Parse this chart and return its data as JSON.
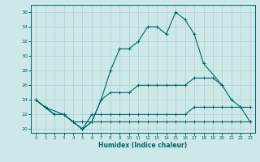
{
  "xlabel": "Humidex (Indice chaleur)",
  "line_color": "#006666",
  "bg_color": "#cce8e8",
  "grid_color": "#b0d0cc",
  "ylim": [
    19.5,
    37
  ],
  "xlim": [
    -0.5,
    23.5
  ],
  "yticks": [
    20,
    22,
    24,
    26,
    28,
    30,
    32,
    34,
    36
  ],
  "xticks": [
    0,
    1,
    2,
    3,
    4,
    5,
    6,
    7,
    8,
    9,
    10,
    11,
    12,
    13,
    14,
    15,
    16,
    17,
    18,
    19,
    20,
    21,
    22,
    23
  ],
  "curve1_x": [
    0,
    1,
    3,
    4,
    5,
    6,
    7,
    8,
    9,
    10,
    11,
    12,
    13,
    14,
    15,
    16,
    17,
    18,
    20,
    21,
    22,
    23
  ],
  "curve1_y": [
    24,
    23,
    22,
    21,
    20,
    21,
    24,
    28,
    31,
    31,
    32,
    34,
    34,
    33,
    36,
    35,
    33,
    29,
    26,
    24,
    23,
    21
  ],
  "curve2_x": [
    0,
    1,
    2,
    3,
    4,
    5,
    6,
    7,
    8,
    9,
    10,
    11,
    12,
    13,
    14,
    15,
    16,
    17,
    18,
    19,
    20
  ],
  "curve2_y": [
    24,
    23,
    22,
    22,
    21,
    20,
    21,
    24,
    25,
    25,
    25,
    26,
    26,
    26,
    26,
    26,
    26,
    27,
    27,
    27,
    26
  ],
  "curve3_x": [
    0,
    1,
    2,
    3,
    4,
    5,
    6,
    7,
    8,
    9,
    10,
    11,
    12,
    13,
    14,
    15,
    16,
    17,
    18,
    19,
    20,
    21,
    22,
    23
  ],
  "curve3_y": [
    24,
    23,
    22,
    22,
    21,
    20,
    22,
    22,
    22,
    22,
    22,
    22,
    22,
    22,
    22,
    22,
    22,
    23,
    23,
    23,
    23,
    23,
    23,
    23
  ],
  "curve4_x": [
    0,
    1,
    2,
    3,
    4,
    5,
    6,
    7,
    8,
    9,
    10,
    11,
    12,
    13,
    14,
    15,
    16,
    17,
    18,
    19,
    20,
    21,
    22,
    23
  ],
  "curve4_y": [
    24,
    23,
    22,
    22,
    21,
    21,
    21,
    21,
    21,
    21,
    21,
    21,
    21,
    21,
    21,
    21,
    21,
    21,
    21,
    21,
    21,
    21,
    21,
    21
  ]
}
